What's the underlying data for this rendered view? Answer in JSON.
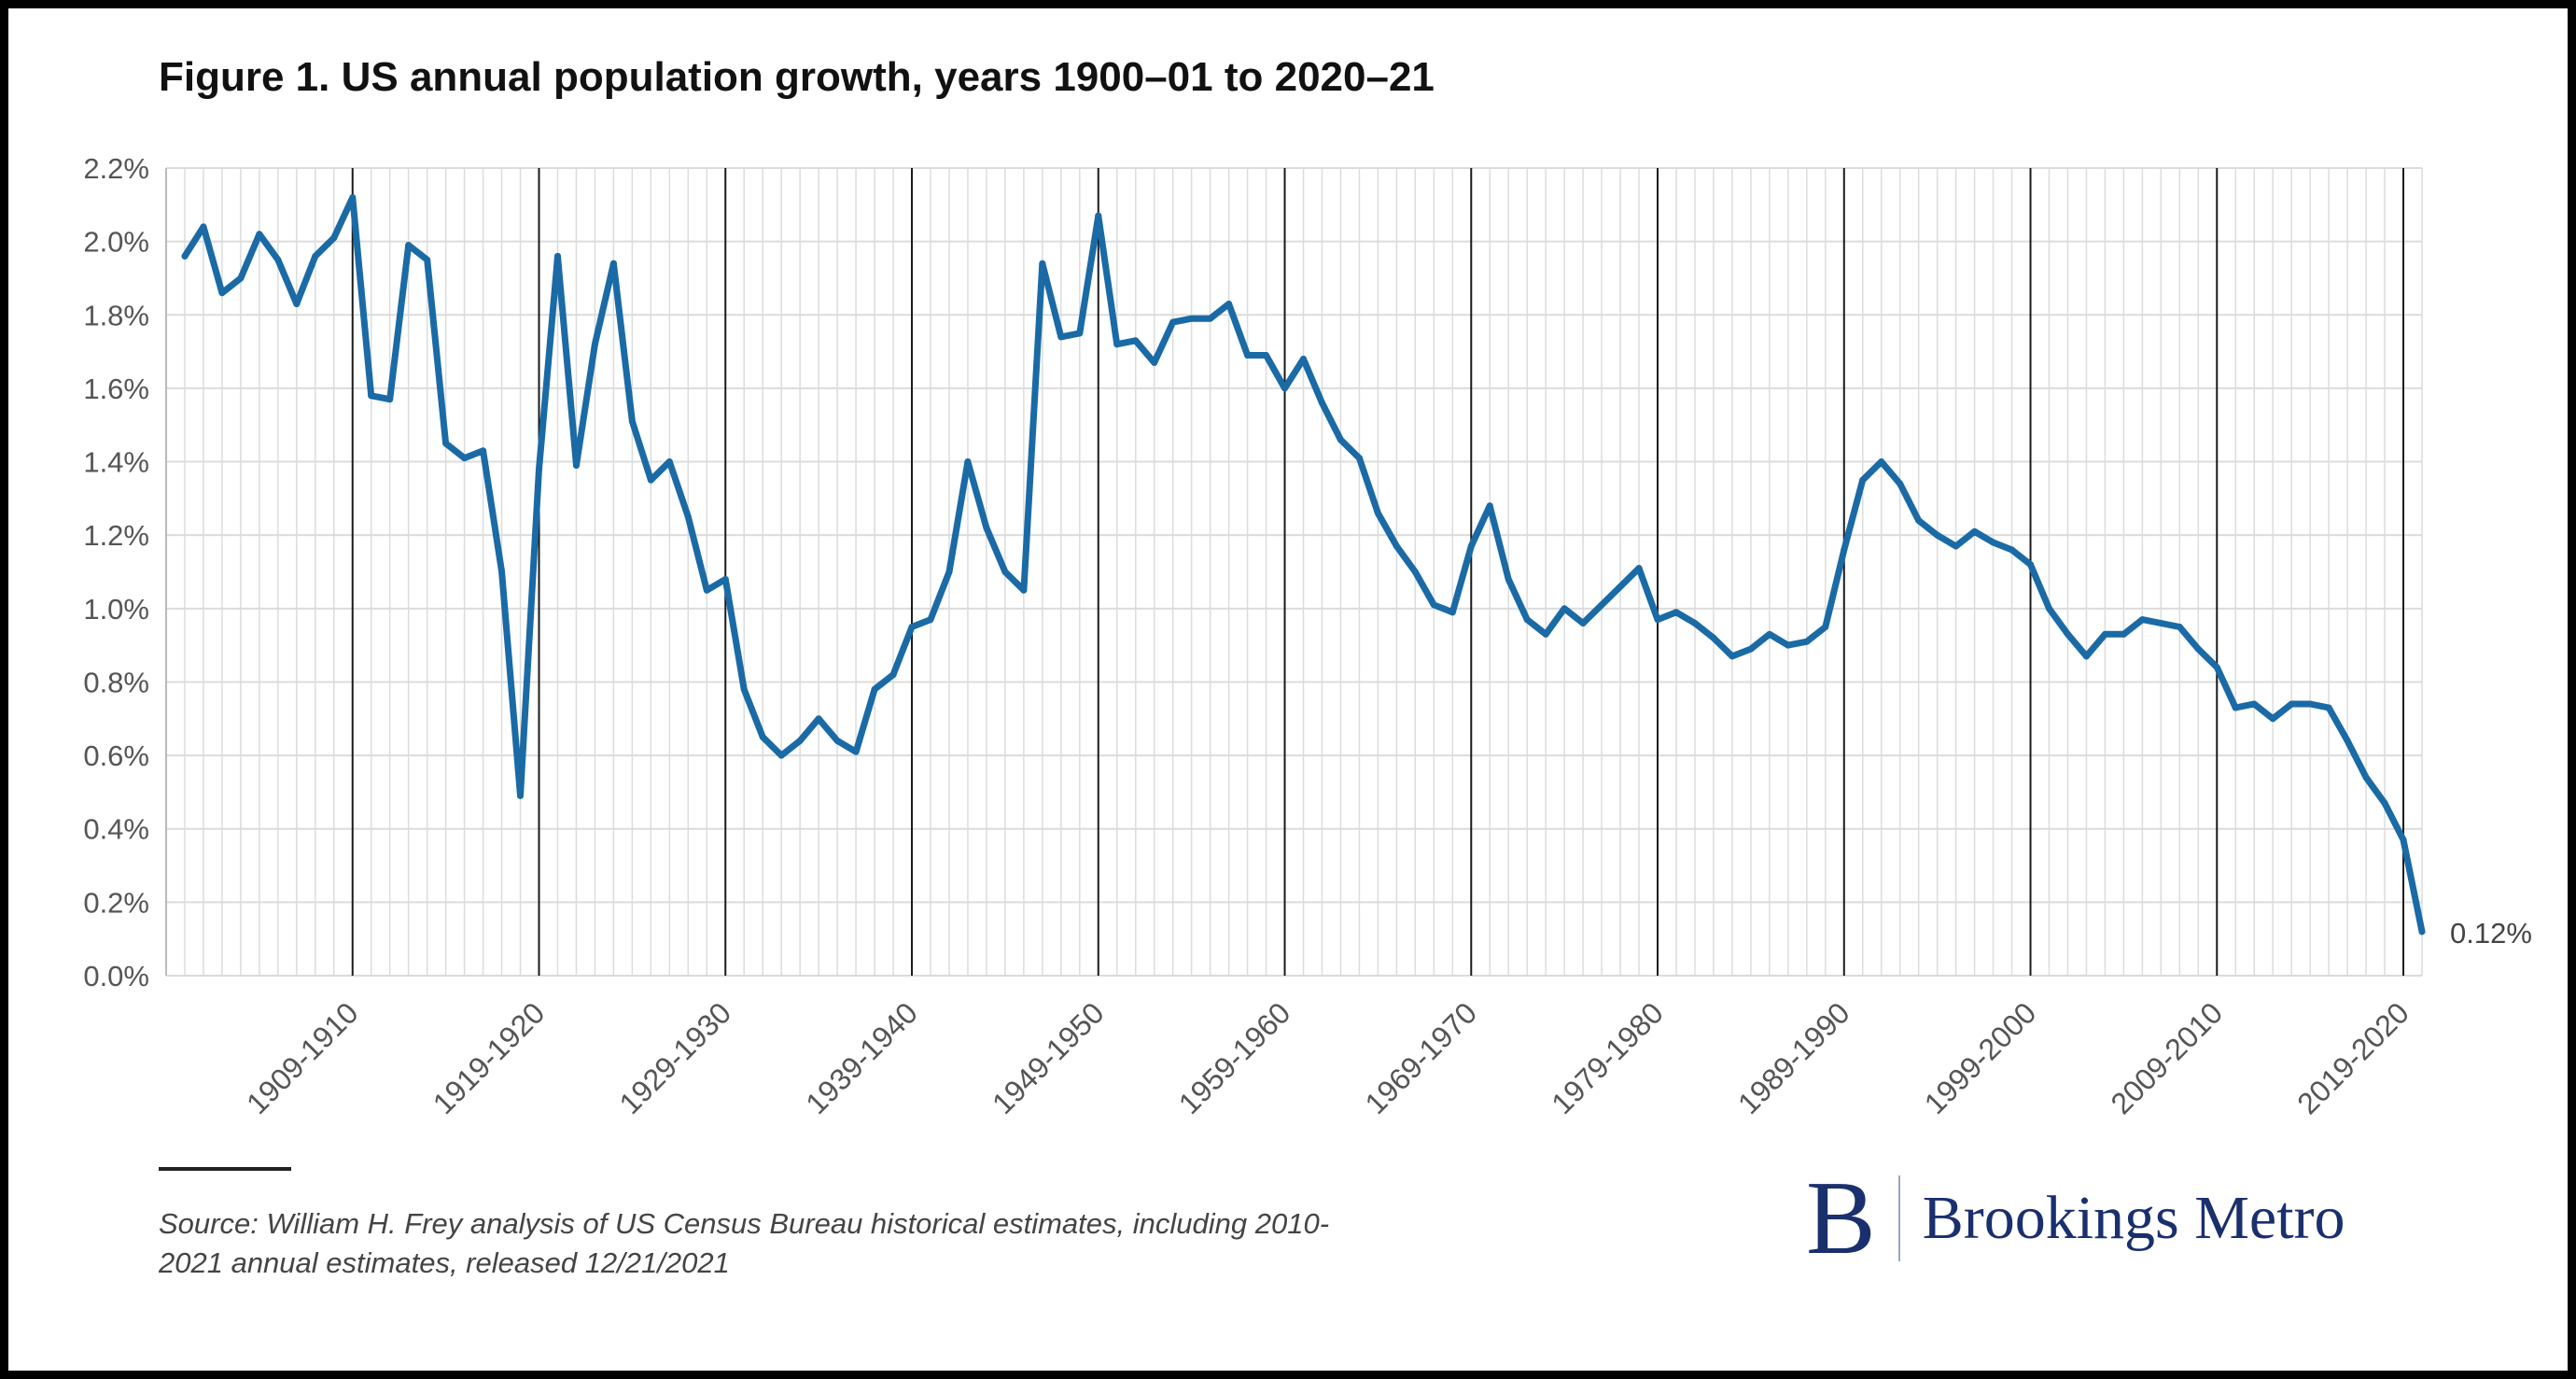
{
  "title": "Figure 1. US annual population growth, years 1900–01 to 2020–21",
  "source": "Source: William H. Frey analysis of US Census Bureau historical estimates, including 2010-2021 annual estimates, released 12/21/2021",
  "logo": {
    "mark": "B",
    "text": "Brookings Metro"
  },
  "colors": {
    "line": "#1a6aa6",
    "grid": "#dcdcdc",
    "decade_line": "#1a1a1a",
    "logo": "#1a2f6e"
  },
  "chart_data": {
    "type": "line",
    "title": "Figure 1. US annual population growth, years 1900–01 to 2020–21",
    "xlabel": "",
    "ylabel": "",
    "x_start_year": 1900,
    "x_end_year": 2020,
    "ylim": [
      0,
      2.2
    ],
    "y_ticks": [
      0,
      0.2,
      0.4,
      0.6,
      0.8,
      1.0,
      1.2,
      1.4,
      1.6,
      1.8,
      2.0,
      2.2
    ],
    "y_tick_labels": [
      "0.0%",
      "0.2%",
      "0.4%",
      "0.6%",
      "0.8%",
      "1.0%",
      "1.2%",
      "1.4%",
      "1.6%",
      "1.8%",
      "2.0%",
      "2.2%"
    ],
    "x_ticks": [
      1910,
      1920,
      1930,
      1940,
      1950,
      1960,
      1970,
      1980,
      1990,
      2000,
      2010,
      2020
    ],
    "x_tick_labels": [
      "1909-1910",
      "1919-1920",
      "1929-1930",
      "1939-1940",
      "1949-1950",
      "1959-1960",
      "1969-1970",
      "1979-1980",
      "1989-1990",
      "1999-2000",
      "2009-2010",
      "2019-2020"
    ],
    "grid": true,
    "end_label": "0.12%",
    "series": [
      {
        "name": "US annual population growth (%)",
        "values": [
          1.96,
          2.04,
          1.86,
          1.9,
          2.02,
          1.95,
          1.83,
          1.96,
          2.01,
          2.12,
          1.58,
          1.57,
          1.99,
          1.95,
          1.45,
          1.41,
          1.43,
          1.1,
          0.49,
          1.38,
          1.96,
          1.39,
          1.72,
          1.94,
          1.51,
          1.35,
          1.4,
          1.25,
          1.05,
          1.08,
          0.78,
          0.65,
          0.6,
          0.64,
          0.7,
          0.64,
          0.61,
          0.78,
          0.82,
          0.95,
          0.97,
          1.1,
          1.4,
          1.22,
          1.1,
          1.05,
          1.94,
          1.74,
          1.75,
          2.07,
          1.72,
          1.73,
          1.67,
          1.78,
          1.79,
          1.79,
          1.83,
          1.69,
          1.69,
          1.6,
          1.68,
          1.56,
          1.46,
          1.41,
          1.26,
          1.17,
          1.1,
          1.01,
          0.99,
          1.17,
          1.28,
          1.08,
          0.97,
          0.93,
          1.0,
          0.96,
          1.01,
          1.06,
          1.11,
          0.97,
          0.99,
          0.96,
          0.92,
          0.87,
          0.89,
          0.93,
          0.9,
          0.91,
          0.95,
          1.16,
          1.35,
          1.4,
          1.34,
          1.24,
          1.2,
          1.17,
          1.21,
          1.18,
          1.16,
          1.12,
          1.0,
          0.93,
          0.87,
          0.93,
          0.93,
          0.97,
          0.96,
          0.95,
          0.89,
          0.84,
          0.73,
          0.74,
          0.7,
          0.74,
          0.74,
          0.73,
          0.64,
          0.54,
          0.47,
          0.37,
          0.12
        ]
      }
    ]
  }
}
